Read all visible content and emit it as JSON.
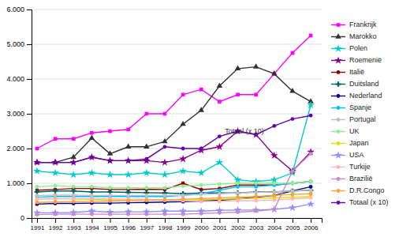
{
  "chart_data": {
    "type": "line",
    "x": [
      1991,
      1992,
      1993,
      1994,
      1995,
      1996,
      1997,
      1998,
      1999,
      2000,
      2001,
      2002,
      2003,
      2004,
      2005,
      2006
    ],
    "xlim": [
      1990.7,
      2006.6
    ],
    "xticks": [
      1991,
      1992,
      1993,
      1994,
      1995,
      1996,
      1997,
      1998,
      1999,
      2000,
      2001,
      2002,
      2003,
      2004,
      2005,
      2006
    ],
    "ylim": [
      0,
      6000
    ],
    "yticks": [
      0,
      {
        "value": 1000,
        "label": "1.000"
      },
      {
        "value": 2000,
        "label": "2.000"
      },
      {
        "value": 3000,
        "label": "3.000"
      },
      {
        "value": 4000,
        "label": "4.000"
      },
      {
        "value": 5000,
        "label": "5.000"
      },
      {
        "value": 6000,
        "label": "6.000"
      }
    ],
    "grid": true,
    "legend": "right",
    "series": [
      {
        "name": "Frankrijk",
        "color": "#FF00FF",
        "marker": "square",
        "values": [
          2000,
          2280,
          2280,
          2450,
          2500,
          2550,
          3000,
          3000,
          3550,
          3700,
          3350,
          3550,
          3550,
          4150,
          4750,
          5250
        ]
      },
      {
        "name": "Marokko",
        "color": "#303030",
        "marker": "triangle",
        "values": [
          1600,
          1600,
          1750,
          2300,
          1850,
          2050,
          2050,
          2200,
          2700,
          3100,
          3800,
          4300,
          4350,
          4150,
          3650,
          3350
        ]
      },
      {
        "name": "Polen",
        "color": "#00CCCC",
        "marker": "star",
        "values": [
          1350,
          1300,
          1250,
          1300,
          1250,
          1250,
          1300,
          1250,
          1350,
          1300,
          1600,
          1100,
          1050,
          1100,
          1300,
          3250
        ]
      },
      {
        "name": "Roemenië",
        "color": "#8B008B",
        "marker": "star",
        "values": [
          1600,
          1600,
          1600,
          1750,
          1650,
          1650,
          1650,
          1600,
          1700,
          1950,
          2050,
          2500,
          2400,
          1800,
          1350,
          1900
        ]
      },
      {
        "name": "Italië",
        "color": "#8B0000",
        "marker": "circle",
        "values": [
          800,
          820,
          850,
          850,
          820,
          820,
          830,
          820,
          1000,
          820,
          850,
          950,
          950,
          950,
          1000,
          1050
        ]
      },
      {
        "name": "Duitsland",
        "color": "#006060",
        "marker": "plus",
        "values": [
          750,
          780,
          780,
          750,
          750,
          740,
          730,
          720,
          700,
          720,
          720,
          720,
          750,
          750,
          780,
          800
        ]
      },
      {
        "name": "Nederland",
        "color": "#000090",
        "marker": "circle",
        "values": [
          400,
          420,
          420,
          430,
          430,
          440,
          450,
          460,
          470,
          490,
          510,
          550,
          600,
          650,
          780,
          900
        ]
      },
      {
        "name": "Spanje",
        "color": "#00BFFF",
        "marker": "circle",
        "values": [
          600,
          620,
          620,
          620,
          620,
          620,
          620,
          620,
          650,
          700,
          800,
          900,
          900,
          950,
          1000,
          1050
        ]
      },
      {
        "name": "Portugal",
        "color": "#C0C0C0",
        "marker": "circle",
        "values": [
          650,
          660,
          660,
          650,
          650,
          650,
          650,
          650,
          650,
          680,
          700,
          720,
          740,
          750,
          780,
          800
        ]
      },
      {
        "name": "UK",
        "color": "#90EE90",
        "marker": "circle",
        "values": [
          900,
          930,
          900,
          900,
          870,
          870,
          870,
          870,
          920,
          950,
          980,
          1000,
          1000,
          1000,
          1000,
          1050
        ]
      },
      {
        "name": "Japan",
        "color": "#DDDD00",
        "marker": "circle",
        "values": [
          550,
          560,
          550,
          540,
          520,
          520,
          520,
          510,
          510,
          530,
          540,
          550,
          570,
          580,
          600,
          620
        ]
      },
      {
        "name": "USA",
        "color": "#9090FF",
        "marker": "star",
        "values": [
          150,
          150,
          160,
          200,
          170,
          180,
          180,
          200,
          200,
          200,
          220,
          230,
          230,
          250,
          300,
          400
        ]
      },
      {
        "name": "Turkije",
        "color": "#FFB6C1",
        "marker": "circle",
        "values": [
          550,
          550,
          560,
          560,
          550,
          540,
          540,
          520,
          500,
          480,
          480,
          500,
          500,
          520,
          550,
          580
        ]
      },
      {
        "name": "Brazilië",
        "color": "#CC88CC",
        "marker": "circle",
        "values": [
          100,
          110,
          110,
          110,
          110,
          110,
          110,
          110,
          110,
          130,
          150,
          170,
          200,
          250,
          1350,
          1850
        ]
      },
      {
        "name": "D.R.Congo",
        "color": "#FFA040",
        "marker": "circle",
        "values": [
          450,
          460,
          470,
          480,
          490,
          500,
          510,
          520,
          540,
          560,
          580,
          600,
          620,
          650,
          680,
          700
        ]
      },
      {
        "name": "Totaal (x 10)",
        "color": "#6600AA",
        "marker": "circle",
        "values": [
          1600,
          1600,
          1600,
          1750,
          1650,
          1650,
          1700,
          2050,
          2000,
          2000,
          2350,
          2500,
          2400,
          2650,
          2850,
          2950
        ]
      }
    ],
    "annotations": [
      {
        "text": "Totaal (x 10)",
        "x": 2001.3,
        "y": 2430
      }
    ]
  }
}
